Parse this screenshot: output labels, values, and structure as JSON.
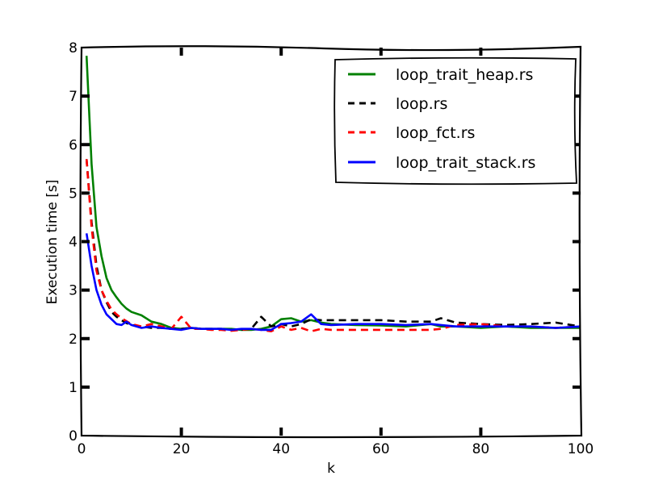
{
  "chart_data": {
    "type": "line",
    "title": "",
    "xlabel": "k",
    "ylabel": "Execution time [s]",
    "xlim": [
      0,
      100
    ],
    "ylim": [
      0,
      8
    ],
    "xticks": [
      0,
      20,
      40,
      60,
      80,
      100
    ],
    "yticks": [
      0,
      1,
      2,
      3,
      4,
      5,
      6,
      7,
      8
    ],
    "grid": false,
    "legend_position": "upper right",
    "style": "xkcd",
    "x": [
      1,
      2,
      3,
      4,
      5,
      6,
      7,
      8,
      9,
      10,
      12,
      14,
      16,
      18,
      20,
      22,
      24,
      26,
      28,
      30,
      32,
      34,
      36,
      38,
      40,
      42,
      44,
      46,
      48,
      50,
      55,
      60,
      65,
      70,
      72,
      75,
      80,
      85,
      90,
      95,
      100
    ],
    "series": [
      {
        "name": "loop_trait_heap.rs",
        "color": "#008000",
        "dash": "solid",
        "values": [
          7.83,
          5.6,
          4.3,
          3.7,
          3.25,
          3.0,
          2.85,
          2.72,
          2.62,
          2.55,
          2.48,
          2.35,
          2.3,
          2.22,
          2.2,
          2.22,
          2.2,
          2.2,
          2.2,
          2.2,
          2.18,
          2.18,
          2.2,
          2.25,
          2.4,
          2.42,
          2.35,
          2.38,
          2.33,
          2.3,
          2.28,
          2.27,
          2.25,
          2.3,
          2.25,
          2.25,
          2.22,
          2.25,
          2.22,
          2.22,
          2.22
        ]
      },
      {
        "name": "loop.rs",
        "color": "#000000",
        "dash": "dashed",
        "values": [
          5.7,
          4.4,
          3.5,
          3.0,
          2.75,
          2.55,
          2.45,
          2.38,
          2.32,
          2.28,
          2.25,
          2.22,
          2.22,
          2.2,
          2.2,
          2.22,
          2.2,
          2.2,
          2.2,
          2.18,
          2.18,
          2.2,
          2.45,
          2.25,
          2.3,
          2.25,
          2.3,
          2.4,
          2.38,
          2.38,
          2.38,
          2.38,
          2.35,
          2.35,
          2.42,
          2.33,
          2.3,
          2.28,
          2.3,
          2.33,
          2.25
        ]
      },
      {
        "name": "loop_fct.rs",
        "color": "#ff0000",
        "dash": "dashed",
        "values": [
          5.7,
          4.3,
          3.4,
          3.0,
          2.78,
          2.6,
          2.5,
          2.42,
          2.36,
          2.3,
          2.25,
          2.3,
          2.25,
          2.2,
          2.45,
          2.2,
          2.2,
          2.18,
          2.18,
          2.16,
          2.18,
          2.2,
          2.18,
          2.15,
          2.25,
          2.18,
          2.22,
          2.15,
          2.2,
          2.18,
          2.18,
          2.18,
          2.18,
          2.18,
          2.2,
          2.28,
          2.3,
          2.25,
          2.25,
          2.22,
          2.25
        ]
      },
      {
        "name": "loop_trait_stack.rs",
        "color": "#0000ff",
        "dash": "solid",
        "values": [
          4.17,
          3.5,
          3.0,
          2.7,
          2.5,
          2.4,
          2.3,
          2.28,
          2.35,
          2.28,
          2.22,
          2.25,
          2.22,
          2.2,
          2.18,
          2.22,
          2.2,
          2.2,
          2.2,
          2.18,
          2.2,
          2.2,
          2.18,
          2.18,
          2.3,
          2.32,
          2.35,
          2.5,
          2.3,
          2.28,
          2.3,
          2.3,
          2.28,
          2.3,
          2.28,
          2.25,
          2.25,
          2.25,
          2.25,
          2.22,
          2.25
        ]
      }
    ]
  },
  "labels": {
    "xlabel": "k",
    "ylabel": "Execution time [s]",
    "legend": [
      "loop_trait_heap.rs",
      "loop.rs",
      "loop_fct.rs",
      "loop_trait_stack.rs"
    ]
  }
}
